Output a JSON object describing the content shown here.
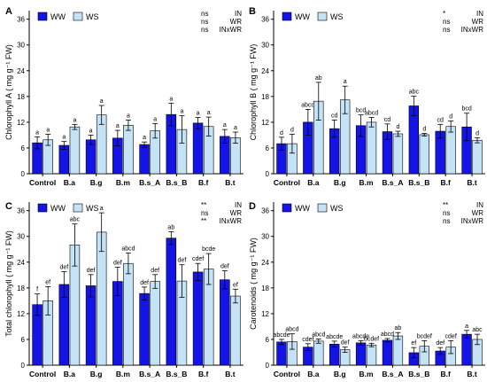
{
  "legend": {
    "ww": "WW",
    "ws": "WS"
  },
  "colors": {
    "ww": "#1414e6",
    "ws": "#c5e3f6",
    "axis": "#000000"
  },
  "chart_data": [
    {
      "panel": "A",
      "type": "bar",
      "ylabel": "Chlorophyll A ( mg  g⁻¹ FW)",
      "ylim": [
        0,
        38
      ],
      "yticks": [
        "0",
        "6",
        "12",
        "18",
        "24",
        "30",
        "36"
      ],
      "categories": [
        "Control",
        "B.a",
        "B.g",
        "B.m",
        "B.s_A",
        "B.s_B",
        "B.f",
        "B.t"
      ],
      "series": [
        {
          "name": "WW",
          "values": [
            7.2,
            6.6,
            7.9,
            8.3,
            6.8,
            13.8,
            11.8,
            8.7
          ],
          "errors": [
            1.4,
            0.9,
            1.1,
            1.8,
            0.6,
            2.6,
            1.3,
            1.6
          ],
          "letters": [
            "a",
            "a",
            "a",
            "a",
            "a",
            "a",
            "a",
            "a"
          ]
        },
        {
          "name": "WS",
          "values": [
            7.9,
            10.9,
            13.7,
            11.3,
            10.0,
            10.3,
            11.0,
            8.4
          ],
          "errors": [
            1.3,
            0.6,
            2.2,
            1.2,
            1.7,
            3.2,
            2.2,
            1.3
          ],
          "letters": [
            "a",
            "a",
            "a",
            "a",
            "a",
            "a",
            "a",
            "a"
          ]
        }
      ],
      "stats": [
        {
          "sig": "ns",
          "label": "IN"
        },
        {
          "sig": "ns",
          "label": "WR"
        },
        {
          "sig": "ns",
          "label": "INxWR"
        }
      ]
    },
    {
      "panel": "B",
      "type": "bar",
      "ylabel": "Chlorophyll B ( mg  g⁻¹ FW)",
      "ylim": [
        0,
        38
      ],
      "yticks": [
        "0",
        "6",
        "12",
        "18",
        "24",
        "30",
        "36"
      ],
      "categories": [
        "Control",
        "B.a",
        "B.g",
        "B.m",
        "B.s_A",
        "B.s_B",
        "B.f",
        "B.t"
      ],
      "series": [
        {
          "name": "WW",
          "values": [
            7.0,
            12.0,
            10.5,
            11.2,
            9.8,
            15.8,
            9.9,
            10.9
          ],
          "errors": [
            1.5,
            3.0,
            2.0,
            2.5,
            1.8,
            2.3,
            1.6,
            3.2
          ],
          "letters": [
            "d",
            "abcd",
            "cd",
            "bcd",
            "cd",
            "abc",
            "cd",
            "bcd"
          ]
        },
        {
          "name": "WS",
          "values": [
            7.0,
            16.9,
            17.2,
            12.0,
            9.3,
            9.1,
            11.0,
            7.8
          ],
          "errors": [
            2.2,
            4.4,
            3.2,
            1.1,
            0.6,
            0.3,
            1.3,
            0.6
          ],
          "letters": [
            "d",
            "ab",
            "a",
            "abcd",
            "d",
            "d",
            "d",
            "d"
          ]
        }
      ],
      "stats": [
        {
          "sig": "*",
          "label": "IN"
        },
        {
          "sig": "ns",
          "label": "WR"
        },
        {
          "sig": "ns",
          "label": "INxWR"
        }
      ]
    },
    {
      "panel": "C",
      "type": "bar",
      "ylabel": "Total chlorophyll ( mg  g⁻¹ FW)",
      "ylim": [
        0,
        38
      ],
      "yticks": [
        "0",
        "6",
        "12",
        "18",
        "24",
        "30",
        "36"
      ],
      "categories": [
        "Control",
        "B.a",
        "B.g",
        "B.m",
        "B.s_A",
        "B.s_B",
        "B.f",
        "B.t"
      ],
      "series": [
        {
          "name": "WW",
          "values": [
            14.1,
            18.8,
            18.5,
            19.5,
            16.7,
            29.6,
            21.7,
            19.9
          ],
          "errors": [
            2.5,
            3.0,
            2.6,
            3.3,
            1.5,
            1.5,
            2.0,
            2.1
          ],
          "letters": [
            "f",
            "def",
            "def",
            "def",
            "def",
            "ab",
            "cdef",
            "def"
          ]
        },
        {
          "name": "WS",
          "values": [
            15.0,
            28.0,
            31.0,
            23.7,
            19.5,
            19.6,
            22.4,
            16.1
          ],
          "errors": [
            3.3,
            4.9,
            4.5,
            2.4,
            1.6,
            3.8,
            3.6,
            1.6
          ],
          "letters": [
            "ef",
            "abc",
            "a",
            "abcd",
            "def",
            "def",
            "bcde",
            "ef"
          ]
        }
      ],
      "stats": [
        {
          "sig": "**",
          "label": "IN"
        },
        {
          "sig": "ns",
          "label": "WR"
        },
        {
          "sig": "**",
          "label": "INxWR"
        }
      ]
    },
    {
      "panel": "D",
      "type": "bar",
      "ylabel": "Carotenoids ( mg  g⁻¹ FW)",
      "ylim": [
        0,
        38
      ],
      "yticks": [
        "0",
        "6",
        "12",
        "18",
        "24",
        "30",
        "36"
      ],
      "categories": [
        "Control",
        "B.a",
        "B.g",
        "B.m",
        "B.s_A",
        "B.s_B",
        "B.f",
        "B.t"
      ],
      "series": [
        {
          "name": "WW",
          "values": [
            5.4,
            4.2,
            4.9,
            5.2,
            5.8,
            2.9,
            3.3,
            7.2
          ],
          "errors": [
            0.6,
            0.8,
            0.7,
            0.5,
            0.4,
            1.2,
            0.8,
            0.9
          ],
          "letters": [
            "abcde",
            "cdef",
            "abcde",
            "abcde",
            "abcd",
            "ef",
            "def",
            "a"
          ]
        },
        {
          "name": "WS",
          "values": [
            5.5,
            5.6,
            3.6,
            4.7,
            6.8,
            4.4,
            4.2,
            6.0
          ],
          "errors": [
            1.8,
            0.5,
            0.6,
            0.4,
            0.8,
            1.3,
            1.5,
            1.2
          ],
          "letters": [
            "abcd",
            "abcd",
            "def",
            "bcdef",
            "ab",
            "bcdef",
            "cdef",
            "abc"
          ]
        }
      ],
      "stats": [
        {
          "sig": "**",
          "label": "IN"
        },
        {
          "sig": "ns",
          "label": "WR"
        },
        {
          "sig": "ns",
          "label": "INxWR"
        }
      ]
    }
  ]
}
